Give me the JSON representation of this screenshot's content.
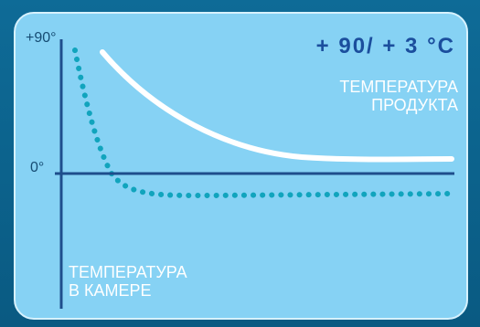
{
  "diagram": {
    "headline": "+ 90/ + 3 °C",
    "product_label_line1": "ТЕМПЕРАТУРА",
    "product_label_line2": "ПРОДУКТА",
    "chamber_label_line1": "ТЕМПЕРАТУРА",
    "chamber_label_line2": "В КАМЕРЕ",
    "y_ticks": {
      "top": "+90°",
      "zero": "0°"
    },
    "colors": {
      "background": "#0b5f88",
      "panel": "#86d2f4",
      "axis": "#1e4e8c",
      "product_curve": "#ffffff",
      "chamber_curve": "#11a4bd",
      "headline": "#1b4e9d"
    }
  }
}
